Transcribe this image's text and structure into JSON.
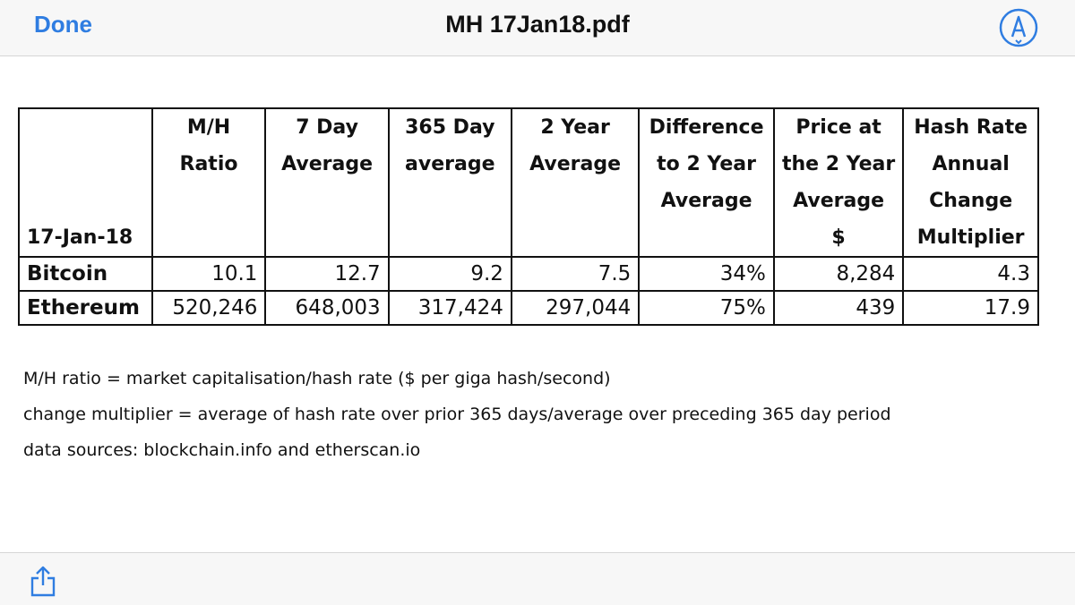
{
  "header": {
    "done_label": "Done",
    "title": "MH 17Jan18.pdf",
    "markup_icon": "markup-pen-icon",
    "accent_color": "#2f7de1"
  },
  "table": {
    "date_label": "17-Jan-18",
    "columns": [
      [
        "M/H",
        "Ratio"
      ],
      [
        "7 Day",
        "Average"
      ],
      [
        "365 Day",
        "average"
      ],
      [
        "2 Year",
        "Average"
      ],
      [
        "Difference",
        "to 2 Year",
        "Average"
      ],
      [
        "Price at",
        "the 2 Year",
        "Average",
        "$"
      ],
      [
        "Hash Rate",
        "Annual",
        "Change",
        "Multiplier"
      ]
    ],
    "rows": [
      {
        "name": "Bitcoin",
        "values": [
          "10.1",
          "12.7",
          "9.2",
          "7.5",
          "34%",
          "8,284",
          "4.3"
        ]
      },
      {
        "name": "Ethereum",
        "values": [
          "520,246",
          "648,003",
          "317,424",
          "297,044",
          "75%",
          "439",
          "17.9"
        ]
      }
    ]
  },
  "notes": [
    "M/H ratio = market capitalisation/hash rate ($ per giga hash/second)",
    "change multiplier = average of hash rate over prior 365 days/average over preceding 365 day period",
    "data sources: blockchain.info and etherscan.io"
  ],
  "footer": {
    "share_icon": "share-icon"
  }
}
